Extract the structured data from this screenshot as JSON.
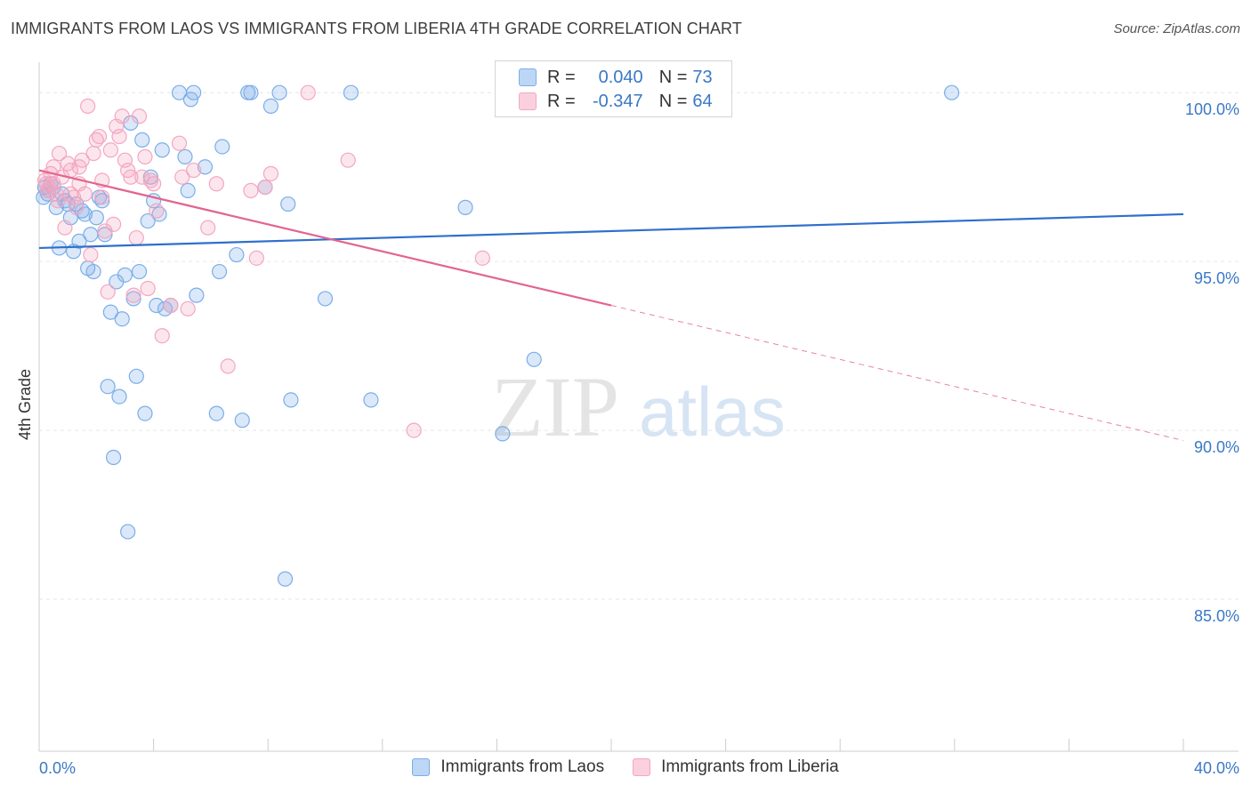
{
  "title": "IMMIGRANTS FROM LAOS VS IMMIGRANTS FROM LIBERIA 4TH GRADE CORRELATION CHART",
  "source": "Source: ZipAtlas.com",
  "watermark": {
    "zip": "ZIP",
    "atlas": "atlas"
  },
  "legend": {
    "r_label": "R =",
    "n_label": "N =",
    "rows": [
      {
        "r": "0.040",
        "n": "73"
      },
      {
        "r": "-0.347",
        "n": "64"
      }
    ]
  },
  "chart_data": {
    "type": "scatter",
    "title": "IMMIGRANTS FROM LAOS VS IMMIGRANTS FROM LIBERIA 4TH GRADE CORRELATION CHART",
    "xlabel": "",
    "ylabel": "4th Grade",
    "xlim": [
      0,
      40
    ],
    "ylim": [
      80.5,
      100.9
    ],
    "x_ticks": [
      0,
      40
    ],
    "x_tick_labels": [
      "0.0%",
      "40.0%"
    ],
    "y_ticks": [
      85,
      90,
      95,
      100
    ],
    "y_tick_labels": [
      "85.0%",
      "90.0%",
      "95.0%",
      "100.0%"
    ],
    "grid": true,
    "legend_position": "bottom-center",
    "series": [
      {
        "name": "Immigrants from Laos",
        "color": "#7baee8",
        "line_color": "#2f6fcc",
        "trend": {
          "x": [
            0,
            40
          ],
          "y": [
            95.4,
            96.4
          ]
        },
        "points": [
          [
            0.2,
            97.2
          ],
          [
            0.3,
            97.1
          ],
          [
            0.4,
            97.3
          ],
          [
            0.5,
            97.2
          ],
          [
            0.6,
            96.6
          ],
          [
            0.7,
            95.4
          ],
          [
            0.8,
            97.0
          ],
          [
            0.9,
            96.8
          ],
          [
            1.0,
            96.7
          ],
          [
            1.1,
            96.3
          ],
          [
            1.2,
            95.3
          ],
          [
            1.3,
            96.7
          ],
          [
            1.4,
            95.6
          ],
          [
            1.5,
            96.5
          ],
          [
            1.6,
            96.4
          ],
          [
            1.7,
            94.8
          ],
          [
            1.8,
            95.8
          ],
          [
            1.9,
            94.7
          ],
          [
            2.0,
            96.3
          ],
          [
            2.1,
            96.9
          ],
          [
            2.2,
            96.8
          ],
          [
            2.3,
            95.8
          ],
          [
            2.4,
            91.3
          ],
          [
            2.5,
            93.5
          ],
          [
            2.6,
            89.2
          ],
          [
            2.7,
            94.4
          ],
          [
            2.8,
            91.0
          ],
          [
            2.9,
            93.3
          ],
          [
            3.0,
            94.6
          ],
          [
            3.1,
            87.0
          ],
          [
            3.2,
            99.1
          ],
          [
            3.3,
            93.9
          ],
          [
            3.4,
            91.6
          ],
          [
            3.5,
            94.7
          ],
          [
            3.6,
            98.6
          ],
          [
            3.7,
            90.5
          ],
          [
            3.8,
            96.2
          ],
          [
            3.9,
            97.5
          ],
          [
            4.0,
            96.8
          ],
          [
            4.1,
            93.7
          ],
          [
            4.2,
            96.4
          ],
          [
            4.3,
            98.3
          ],
          [
            4.4,
            93.6
          ],
          [
            4.6,
            93.7
          ],
          [
            4.9,
            100.0
          ],
          [
            5.1,
            98.1
          ],
          [
            5.2,
            97.1
          ],
          [
            5.3,
            99.8
          ],
          [
            5.4,
            100.0
          ],
          [
            5.5,
            94.0
          ],
          [
            5.8,
            97.8
          ],
          [
            6.2,
            90.5
          ],
          [
            6.3,
            94.7
          ],
          [
            6.4,
            98.4
          ],
          [
            6.9,
            95.2
          ],
          [
            7.1,
            90.3
          ],
          [
            7.3,
            100.0
          ],
          [
            7.4,
            100.0
          ],
          [
            7.9,
            97.2
          ],
          [
            8.1,
            99.6
          ],
          [
            8.4,
            100.0
          ],
          [
            8.6,
            85.6
          ],
          [
            8.7,
            96.7
          ],
          [
            8.8,
            90.9
          ],
          [
            10.0,
            93.9
          ],
          [
            10.9,
            100.0
          ],
          [
            11.6,
            90.9
          ],
          [
            14.9,
            96.6
          ],
          [
            16.2,
            89.9
          ],
          [
            17.3,
            92.1
          ],
          [
            31.9,
            100.0
          ],
          [
            0.3,
            97.0
          ],
          [
            0.15,
            96.9
          ]
        ]
      },
      {
        "name": "Immigrants from Liberia",
        "color": "#f4a6c0",
        "line_color": "#e2658f",
        "trend": {
          "x": [
            0,
            20
          ],
          "y": [
            97.7,
            93.7
          ]
        },
        "trend_dashed": {
          "x": [
            20,
            40
          ],
          "y": [
            93.7,
            89.7
          ]
        },
        "points": [
          [
            0.2,
            97.4
          ],
          [
            0.3,
            97.1
          ],
          [
            0.4,
            97.6
          ],
          [
            0.5,
            97.8
          ],
          [
            0.6,
            97.0
          ],
          [
            0.7,
            98.2
          ],
          [
            0.8,
            97.5
          ],
          [
            0.9,
            96.0
          ],
          [
            1.0,
            97.9
          ],
          [
            1.1,
            97.7
          ],
          [
            1.2,
            96.9
          ],
          [
            1.3,
            96.6
          ],
          [
            1.4,
            97.3
          ],
          [
            1.5,
            98.0
          ],
          [
            1.6,
            97.0
          ],
          [
            1.7,
            99.6
          ],
          [
            1.8,
            95.2
          ],
          [
            1.9,
            98.2
          ],
          [
            2.0,
            98.6
          ],
          [
            2.1,
            98.7
          ],
          [
            2.2,
            96.9
          ],
          [
            2.3,
            95.9
          ],
          [
            2.4,
            94.1
          ],
          [
            2.5,
            98.3
          ],
          [
            2.6,
            96.1
          ],
          [
            2.7,
            99.0
          ],
          [
            2.8,
            98.7
          ],
          [
            2.9,
            99.3
          ],
          [
            3.0,
            98.0
          ],
          [
            3.1,
            97.7
          ],
          [
            3.2,
            97.5
          ],
          [
            3.3,
            94.0
          ],
          [
            3.4,
            95.7
          ],
          [
            3.5,
            99.3
          ],
          [
            3.6,
            97.5
          ],
          [
            3.7,
            98.1
          ],
          [
            3.8,
            94.2
          ],
          [
            3.9,
            97.4
          ],
          [
            4.0,
            97.3
          ],
          [
            4.1,
            96.5
          ],
          [
            4.3,
            92.8
          ],
          [
            4.6,
            93.7
          ],
          [
            4.9,
            98.5
          ],
          [
            5.0,
            97.5
          ],
          [
            5.2,
            93.6
          ],
          [
            5.4,
            97.7
          ],
          [
            5.9,
            96.0
          ],
          [
            6.2,
            97.3
          ],
          [
            6.6,
            91.9
          ],
          [
            7.4,
            97.1
          ],
          [
            7.6,
            95.1
          ],
          [
            7.9,
            97.2
          ],
          [
            8.1,
            97.6
          ],
          [
            9.4,
            100.0
          ],
          [
            10.8,
            98.0
          ],
          [
            13.1,
            90.0
          ],
          [
            15.5,
            95.1
          ],
          [
            0.25,
            97.3
          ],
          [
            0.35,
            97.2
          ],
          [
            0.5,
            97.3
          ],
          [
            0.65,
            96.8
          ],
          [
            1.1,
            97.0
          ],
          [
            2.2,
            97.4
          ],
          [
            1.4,
            97.8
          ]
        ]
      }
    ]
  }
}
